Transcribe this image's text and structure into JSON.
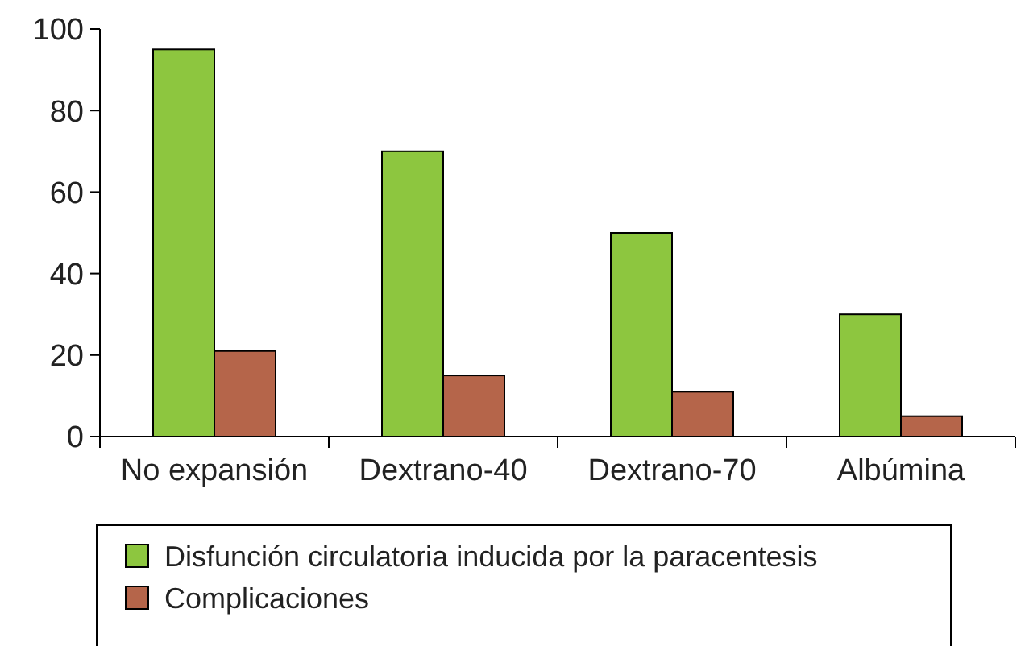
{
  "chart_data": {
    "type": "bar",
    "categories": [
      "No expansión",
      "Dextrano-40",
      "Dextrano-70",
      "Albúmina"
    ],
    "series": [
      {
        "name": "Disfunción circulatoria inducida por la paracentesis",
        "color": "#8dc63f",
        "values": [
          95,
          70,
          50,
          30
        ]
      },
      {
        "name": "Complicaciones",
        "color": "#b5654a",
        "values": [
          21,
          15,
          11,
          5
        ]
      }
    ],
    "ylim": [
      0,
      100
    ],
    "yticks": [
      0,
      20,
      40,
      60,
      80,
      100
    ],
    "grid": false,
    "legend": "bottom"
  }
}
